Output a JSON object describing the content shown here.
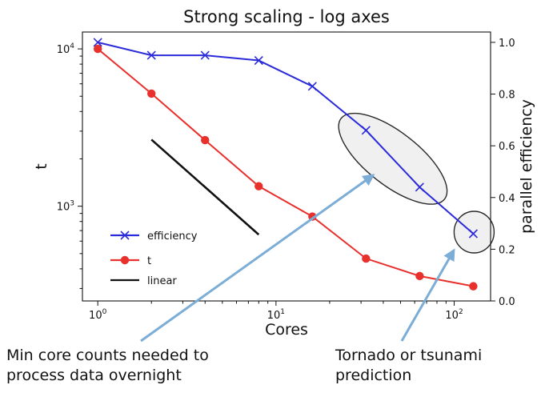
{
  "chart_data": {
    "type": "line",
    "title": "Strong scaling - log axes",
    "xlabel": "Cores",
    "ylabel": "t",
    "y2label": "parallel efficiency",
    "x_scale": "log",
    "y_scale": "log",
    "xlim": [
      0.82,
      160
    ],
    "ylim": [
      250,
      12800
    ],
    "y2lim": [
      0.0,
      1.04
    ],
    "x_ticks": [
      {
        "value": 1,
        "base": "10",
        "exp": "0"
      },
      {
        "value": 10,
        "base": "10",
        "exp": "1"
      },
      {
        "value": 100,
        "base": "10",
        "exp": "2"
      }
    ],
    "y_ticks": [
      {
        "value": 1000,
        "base": "10",
        "exp": "3"
      },
      {
        "value": 10000,
        "base": "10",
        "exp": "4"
      }
    ],
    "y2_ticks": [
      "0.0",
      "0.2",
      "0.4",
      "0.6",
      "0.8",
      "1.0"
    ],
    "grid": false,
    "legend_position": "lower-left",
    "series": [
      {
        "name": "efficiency",
        "axis": "right",
        "marker": "x",
        "color": "#2b2bdc",
        "x": [
          1,
          2,
          4,
          8,
          16,
          32,
          64,
          128
        ],
        "values": [
          1.0,
          0.95,
          0.95,
          0.93,
          0.83,
          0.66,
          0.44,
          0.26
        ]
      },
      {
        "name": "t",
        "axis": "left",
        "marker": "o",
        "color": "#e8302d",
        "x": [
          1,
          2,
          4,
          8,
          16,
          32,
          64,
          128
        ],
        "values": [
          10000,
          5200,
          2630,
          1340,
          860,
          465,
          360,
          310
        ]
      },
      {
        "name": "linear",
        "axis": "left",
        "marker": "none",
        "color": "#111111",
        "x": [
          2,
          8
        ],
        "values": [
          2650,
          660
        ]
      }
    ],
    "annotations": [
      {
        "text": [
          "Min core counts needed to",
          "process data overnight"
        ],
        "color": "#111111"
      },
      {
        "text": [
          "Tornado or tsunami",
          "prediction"
        ],
        "color": "#111111"
      }
    ],
    "highlight_color": "#f0f0f0",
    "arrow_color": "#7badd6"
  }
}
